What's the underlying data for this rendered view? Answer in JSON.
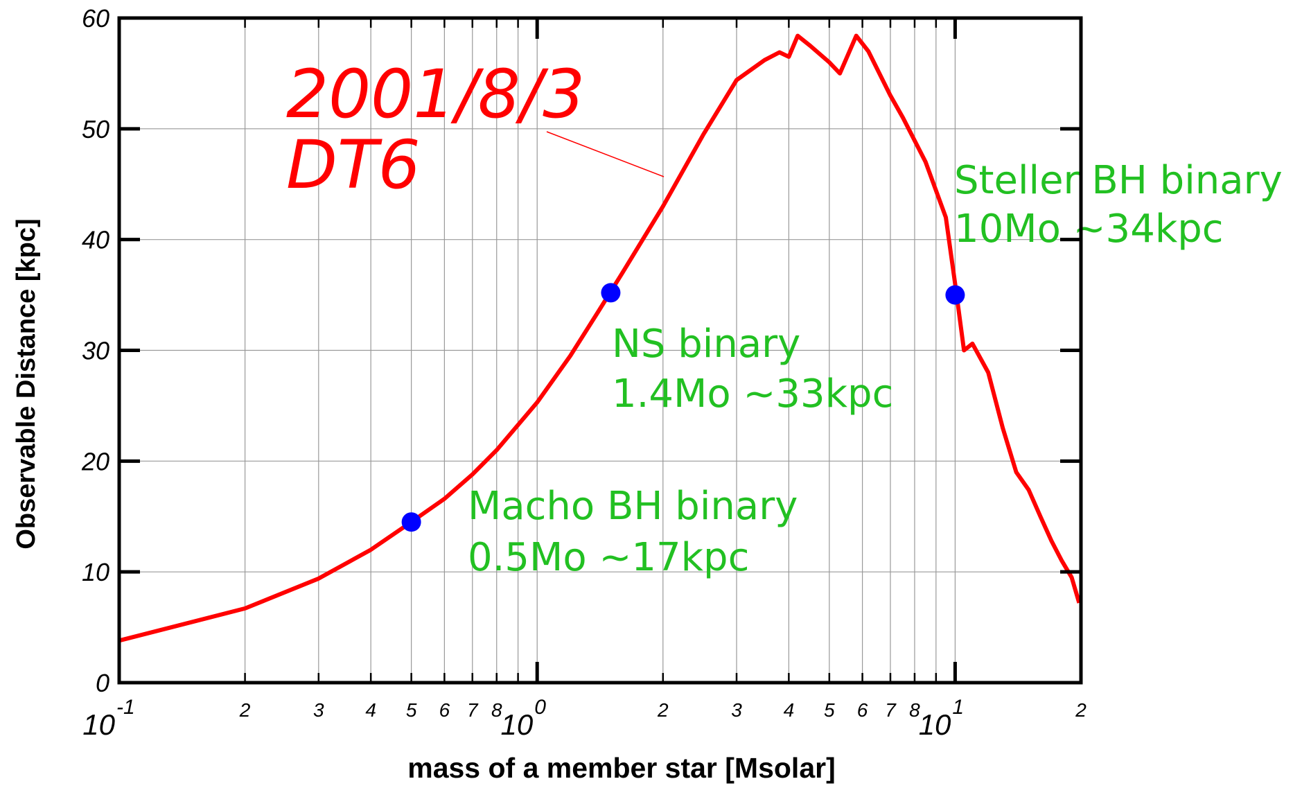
{
  "chart_data": {
    "type": "line",
    "x_label": "mass of a member star  [Msolar]",
    "y_label": "Observable Distance [kpc]",
    "xscale": "log",
    "grid": true,
    "xlim": [
      0.1,
      20
    ],
    "ylim": [
      0,
      60
    ],
    "yticks": [
      0,
      10,
      20,
      30,
      40,
      50,
      60
    ],
    "xticks": [
      {
        "value": 0.1,
        "label": "10",
        "exponent": "-1"
      },
      {
        "value": 0.2,
        "label": "2"
      },
      {
        "value": 0.3,
        "label": "3"
      },
      {
        "value": 0.4,
        "label": "4"
      },
      {
        "value": 0.5,
        "label": "5"
      },
      {
        "value": 0.6,
        "label": "6"
      },
      {
        "value": 0.7,
        "label": "7"
      },
      {
        "value": 0.8,
        "label": "8"
      },
      {
        "value": 0.9,
        "label": null
      },
      {
        "value": 1,
        "label": "10",
        "exponent": "0"
      },
      {
        "value": 2,
        "label": "2"
      },
      {
        "value": 3,
        "label": "3"
      },
      {
        "value": 4,
        "label": "4"
      },
      {
        "value": 5,
        "label": "5"
      },
      {
        "value": 6,
        "label": "6"
      },
      {
        "value": 7,
        "label": "7"
      },
      {
        "value": 8,
        "label": "8"
      },
      {
        "value": 9,
        "label": null
      },
      {
        "value": 10,
        "label": "10",
        "exponent": "1"
      },
      {
        "value": 20,
        "label": "2"
      }
    ],
    "series": [
      {
        "type": "line",
        "color": "#ff0000",
        "x": [
          0.1,
          0.2,
          0.3,
          0.4,
          0.5,
          0.6,
          0.7,
          0.8,
          1.0,
          1.2,
          1.4,
          1.6,
          2.0,
          2.5,
          3.0,
          3.5,
          3.8,
          4.0,
          4.2,
          4.5,
          5.0,
          5.3,
          5.8,
          6.2,
          7.0,
          7.5,
          8.5,
          9.5,
          10,
          10.5,
          11,
          12,
          13,
          14,
          15,
          16,
          17,
          18,
          19,
          19.8
        ],
        "values": [
          3.8,
          6.7,
          9.4,
          12,
          14.5,
          16.6,
          18.8,
          21,
          25.3,
          29.5,
          33.5,
          37,
          43,
          49.5,
          54.4,
          56.2,
          56.9,
          56.5,
          58.4,
          57.5,
          56,
          55,
          58.4,
          57,
          53,
          51,
          47,
          42,
          36,
          30,
          30.6,
          28,
          23,
          19,
          17.4,
          15,
          12.8,
          11,
          9.5,
          7.2
        ]
      },
      {
        "type": "scatter",
        "color": "#0000ff",
        "x": [
          0.5,
          1.5,
          10
        ],
        "values": [
          14.5,
          35.2,
          35
        ]
      }
    ],
    "annotations": [
      {
        "text": "2001/8/3",
        "color": "#ff0000"
      },
      {
        "text": "DT6",
        "color": "#ff0000"
      },
      {
        "text": "Steller BH binary",
        "color": "#22c022"
      },
      {
        "text": "10Mo ~34kpc",
        "color": "#22c022"
      },
      {
        "text": "NS binary",
        "color": "#22c022"
      },
      {
        "text": "1.4Mo ~33kpc",
        "color": "#22c022"
      },
      {
        "text": "Macho BH binary",
        "color": "#22c022"
      },
      {
        "text": "0.5Mo ~17kpc",
        "color": "#22c022"
      }
    ]
  }
}
